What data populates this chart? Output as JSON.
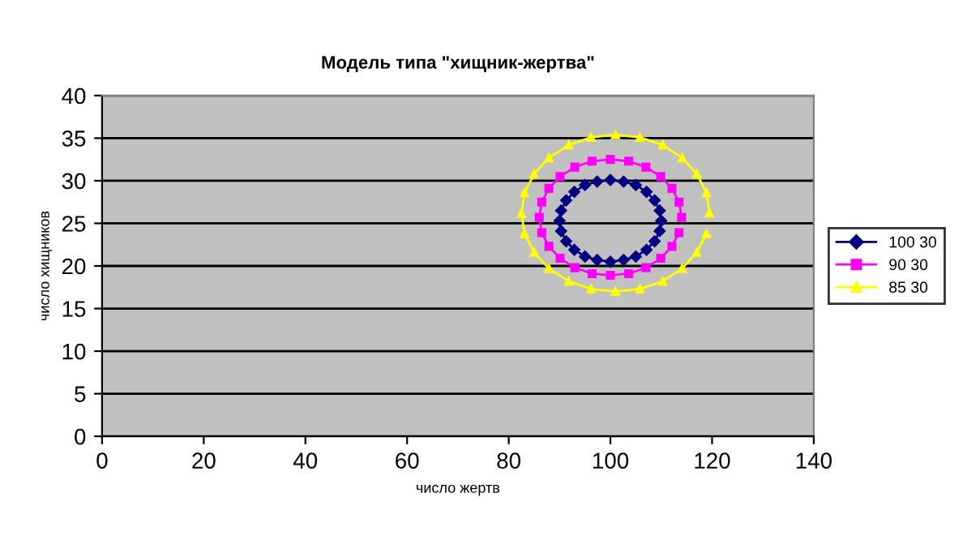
{
  "chart_data": {
    "type": "line",
    "title": "Модель типа \"хищник-жертва\"",
    "xlabel": "число жертв",
    "ylabel": "число хищников",
    "xlim": [
      0,
      140
    ],
    "xticks": [
      0,
      20,
      40,
      60,
      80,
      100,
      120,
      140
    ],
    "ylim": [
      0,
      40
    ],
    "yticks": [
      0,
      5,
      10,
      15,
      20,
      25,
      30,
      35,
      40
    ],
    "grid": "y",
    "legend": "right",
    "line_style": "solid",
    "series": [
      {
        "name": "100 30",
        "color": "#000080",
        "marker": "diamond",
        "x": [
          110,
          109.7,
          108.7,
          107.1,
          105,
          102.6,
          100,
          97.4,
          95,
          92.9,
          91.3,
          90.3,
          90,
          90.3,
          91.3,
          92.9,
          95,
          97.4,
          100,
          102.6,
          105,
          107.1,
          108.7,
          109.7
        ],
        "values": [
          25.3,
          26.5,
          27.7,
          28.7,
          29.5,
          29.9,
          30.1,
          29.9,
          29.5,
          28.7,
          27.7,
          26.5,
          25.3,
          24.1,
          22.9,
          21.9,
          21.1,
          20.7,
          20.5,
          20.7,
          21.1,
          21.9,
          22.9,
          24.1
        ]
      },
      {
        "name": "90 30",
        "color": "#ff00ff",
        "marker": "square",
        "x": [
          114,
          113.5,
          112.1,
          109.9,
          107,
          103.6,
          100,
          96.4,
          93,
          90.1,
          87.9,
          86.5,
          86,
          86.5,
          87.9,
          90.1,
          93,
          96.4,
          100,
          103.6,
          107,
          109.9,
          112.1,
          113.5
        ],
        "values": [
          25.7,
          27.5,
          29.1,
          30.5,
          31.6,
          32.3,
          32.5,
          32.3,
          31.6,
          30.5,
          29.1,
          27.5,
          25.7,
          23.9,
          22.3,
          20.9,
          19.8,
          19.1,
          18.9,
          19.1,
          19.8,
          20.9,
          22.3,
          23.9
        ]
      },
      {
        "name": "85 30",
        "color": "#ffff00",
        "marker": "triangle",
        "x": [
          119.5,
          118.9,
          117.0,
          114.1,
          110.3,
          105.8,
          101,
          96.2,
          91.8,
          87.9,
          85.0,
          83.1,
          82.5,
          83.1,
          85.0,
          87.9,
          91.8,
          96.2,
          101,
          105.8,
          110.3,
          114.1,
          117.0,
          118.9
        ],
        "values": [
          26.2,
          28.6,
          30.8,
          32.7,
          34.2,
          35.1,
          35.4,
          35.1,
          34.2,
          32.7,
          30.8,
          28.6,
          26.2,
          23.8,
          21.6,
          19.7,
          18.2,
          17.3,
          17.0,
          17.3,
          18.2,
          19.7,
          21.6,
          23.8
        ]
      }
    ]
  }
}
